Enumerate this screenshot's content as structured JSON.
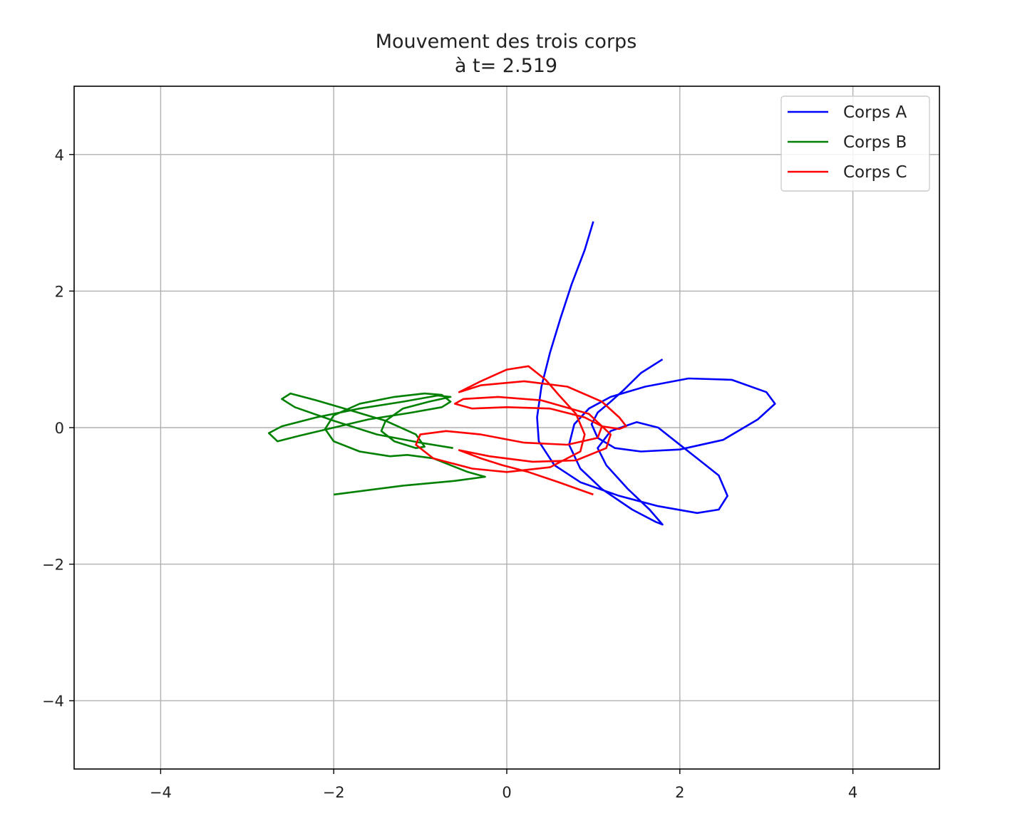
{
  "chart_data": {
    "type": "line",
    "title": "Mouvement des trois corps",
    "subtitle": "à t= 2.519",
    "xlabel": "",
    "ylabel": "",
    "xlim": [
      -5,
      5
    ],
    "ylim": [
      -5,
      5
    ],
    "xticks": [
      -4,
      -2,
      0,
      2,
      4
    ],
    "yticks": [
      -4,
      -2,
      0,
      2,
      4
    ],
    "xtick_labels": [
      "−4",
      "−2",
      "0",
      "2",
      "4"
    ],
    "ytick_labels": [
      "−4",
      "−2",
      "0",
      "2",
      "4"
    ],
    "grid": true,
    "legend_position": "top-right",
    "series": [
      {
        "name": "Corps A",
        "color": "#0000ff",
        "points": [
          [
            1.0,
            3.02
          ],
          [
            0.9,
            2.6
          ],
          [
            0.75,
            2.1
          ],
          [
            0.62,
            1.6
          ],
          [
            0.5,
            1.1
          ],
          [
            0.4,
            0.6
          ],
          [
            0.35,
            0.15
          ],
          [
            0.37,
            -0.2
          ],
          [
            0.55,
            -0.55
          ],
          [
            0.85,
            -0.8
          ],
          [
            1.3,
            -1.0
          ],
          [
            1.75,
            -1.15
          ],
          [
            2.2,
            -1.25
          ],
          [
            2.45,
            -1.2
          ],
          [
            2.55,
            -1.0
          ],
          [
            2.45,
            -0.7
          ],
          [
            2.2,
            -0.45
          ],
          [
            1.95,
            -0.2
          ],
          [
            1.75,
            0.0
          ],
          [
            1.5,
            0.08
          ],
          [
            1.2,
            -0.05
          ],
          [
            1.05,
            -0.3
          ],
          [
            1.15,
            -0.55
          ],
          [
            1.4,
            -0.9
          ],
          [
            1.65,
            -1.2
          ],
          [
            1.8,
            -1.42
          ],
          [
            1.72,
            -1.38
          ],
          [
            1.45,
            -1.2
          ],
          [
            1.1,
            -0.9
          ],
          [
            0.85,
            -0.6
          ],
          [
            0.72,
            -0.25
          ],
          [
            0.78,
            0.05
          ],
          [
            0.95,
            0.28
          ],
          [
            1.2,
            0.45
          ],
          [
            1.6,
            0.6
          ],
          [
            2.1,
            0.72
          ],
          [
            2.6,
            0.7
          ],
          [
            3.0,
            0.52
          ],
          [
            3.1,
            0.35
          ],
          [
            2.9,
            0.12
          ],
          [
            2.5,
            -0.18
          ],
          [
            2.0,
            -0.32
          ],
          [
            1.55,
            -0.35
          ],
          [
            1.25,
            -0.3
          ],
          [
            1.05,
            -0.15
          ],
          [
            0.98,
            0.05
          ],
          [
            1.05,
            0.22
          ],
          [
            1.2,
            0.38
          ],
          [
            1.35,
            0.55
          ],
          [
            1.55,
            0.8
          ],
          [
            1.8,
            1.0
          ]
        ]
      },
      {
        "name": "Corps B",
        "color": "#008000",
        "points": [
          [
            -2.0,
            -0.98
          ],
          [
            -1.2,
            -0.85
          ],
          [
            -0.6,
            -0.78
          ],
          [
            -0.25,
            -0.72
          ],
          [
            -0.45,
            -0.65
          ],
          [
            -0.85,
            -0.45
          ],
          [
            -1.15,
            -0.4
          ],
          [
            -1.35,
            -0.42
          ],
          [
            -1.7,
            -0.35
          ],
          [
            -2.0,
            -0.2
          ],
          [
            -2.1,
            -0.02
          ],
          [
            -2.0,
            0.18
          ],
          [
            -1.7,
            0.35
          ],
          [
            -1.3,
            0.45
          ],
          [
            -0.95,
            0.5
          ],
          [
            -0.75,
            0.48
          ],
          [
            -0.65,
            0.38
          ],
          [
            -0.75,
            0.3
          ],
          [
            -1.1,
            0.22
          ],
          [
            -1.6,
            0.12
          ],
          [
            -2.0,
            0.0
          ],
          [
            -2.4,
            -0.12
          ],
          [
            -2.65,
            -0.2
          ],
          [
            -2.75,
            -0.08
          ],
          [
            -2.6,
            0.02
          ],
          [
            -2.2,
            0.15
          ],
          [
            -1.7,
            0.28
          ],
          [
            -1.2,
            0.38
          ],
          [
            -0.8,
            0.47
          ],
          [
            -0.65,
            0.45
          ],
          [
            -0.9,
            0.38
          ],
          [
            -1.2,
            0.28
          ],
          [
            -1.4,
            0.1
          ],
          [
            -1.45,
            -0.05
          ],
          [
            -1.3,
            -0.2
          ],
          [
            -1.05,
            -0.3
          ],
          [
            -0.95,
            -0.28
          ],
          [
            -1.05,
            -0.1
          ],
          [
            -1.4,
            0.1
          ],
          [
            -1.8,
            0.25
          ],
          [
            -2.2,
            0.4
          ],
          [
            -2.5,
            0.5
          ],
          [
            -2.6,
            0.42
          ],
          [
            -2.45,
            0.3
          ],
          [
            -2.0,
            0.1
          ],
          [
            -1.5,
            -0.1
          ],
          [
            -1.0,
            -0.22
          ],
          [
            -0.62,
            -0.3
          ]
        ]
      },
      {
        "name": "Corps C",
        "color": "#ff0000",
        "points": [
          [
            1.0,
            -0.98
          ],
          [
            0.6,
            -0.8
          ],
          [
            0.25,
            -0.65
          ],
          [
            -0.05,
            -0.55
          ],
          [
            -0.3,
            -0.45
          ],
          [
            -0.55,
            -0.33
          ],
          [
            -0.2,
            -0.42
          ],
          [
            0.3,
            -0.5
          ],
          [
            0.8,
            -0.48
          ],
          [
            1.15,
            -0.3
          ],
          [
            1.2,
            -0.1
          ],
          [
            0.95,
            0.2
          ],
          [
            0.4,
            0.4
          ],
          [
            -0.1,
            0.45
          ],
          [
            -0.5,
            0.42
          ],
          [
            -0.6,
            0.35
          ],
          [
            -0.4,
            0.28
          ],
          [
            0.0,
            0.3
          ],
          [
            0.5,
            0.28
          ],
          [
            0.9,
            0.15
          ],
          [
            1.1,
            0.02
          ],
          [
            1.05,
            -0.15
          ],
          [
            0.7,
            -0.25
          ],
          [
            0.2,
            -0.22
          ],
          [
            -0.3,
            -0.1
          ],
          [
            -0.7,
            -0.05
          ],
          [
            -1.0,
            -0.1
          ],
          [
            -1.05,
            -0.25
          ],
          [
            -0.85,
            -0.45
          ],
          [
            -0.4,
            -0.6
          ],
          [
            0.0,
            -0.65
          ],
          [
            0.5,
            -0.58
          ],
          [
            0.85,
            -0.35
          ],
          [
            0.9,
            -0.1
          ],
          [
            0.8,
            0.2
          ],
          [
            0.6,
            0.48
          ],
          [
            0.45,
            0.7
          ],
          [
            0.25,
            0.9
          ],
          [
            0.0,
            0.85
          ],
          [
            -0.3,
            0.68
          ],
          [
            -0.55,
            0.52
          ],
          [
            -0.3,
            0.62
          ],
          [
            0.2,
            0.68
          ],
          [
            0.7,
            0.6
          ],
          [
            1.1,
            0.38
          ],
          [
            1.3,
            0.15
          ],
          [
            1.38,
            0.02
          ],
          [
            1.3,
            -0.02
          ],
          [
            1.1,
            0.02
          ]
        ]
      }
    ]
  }
}
